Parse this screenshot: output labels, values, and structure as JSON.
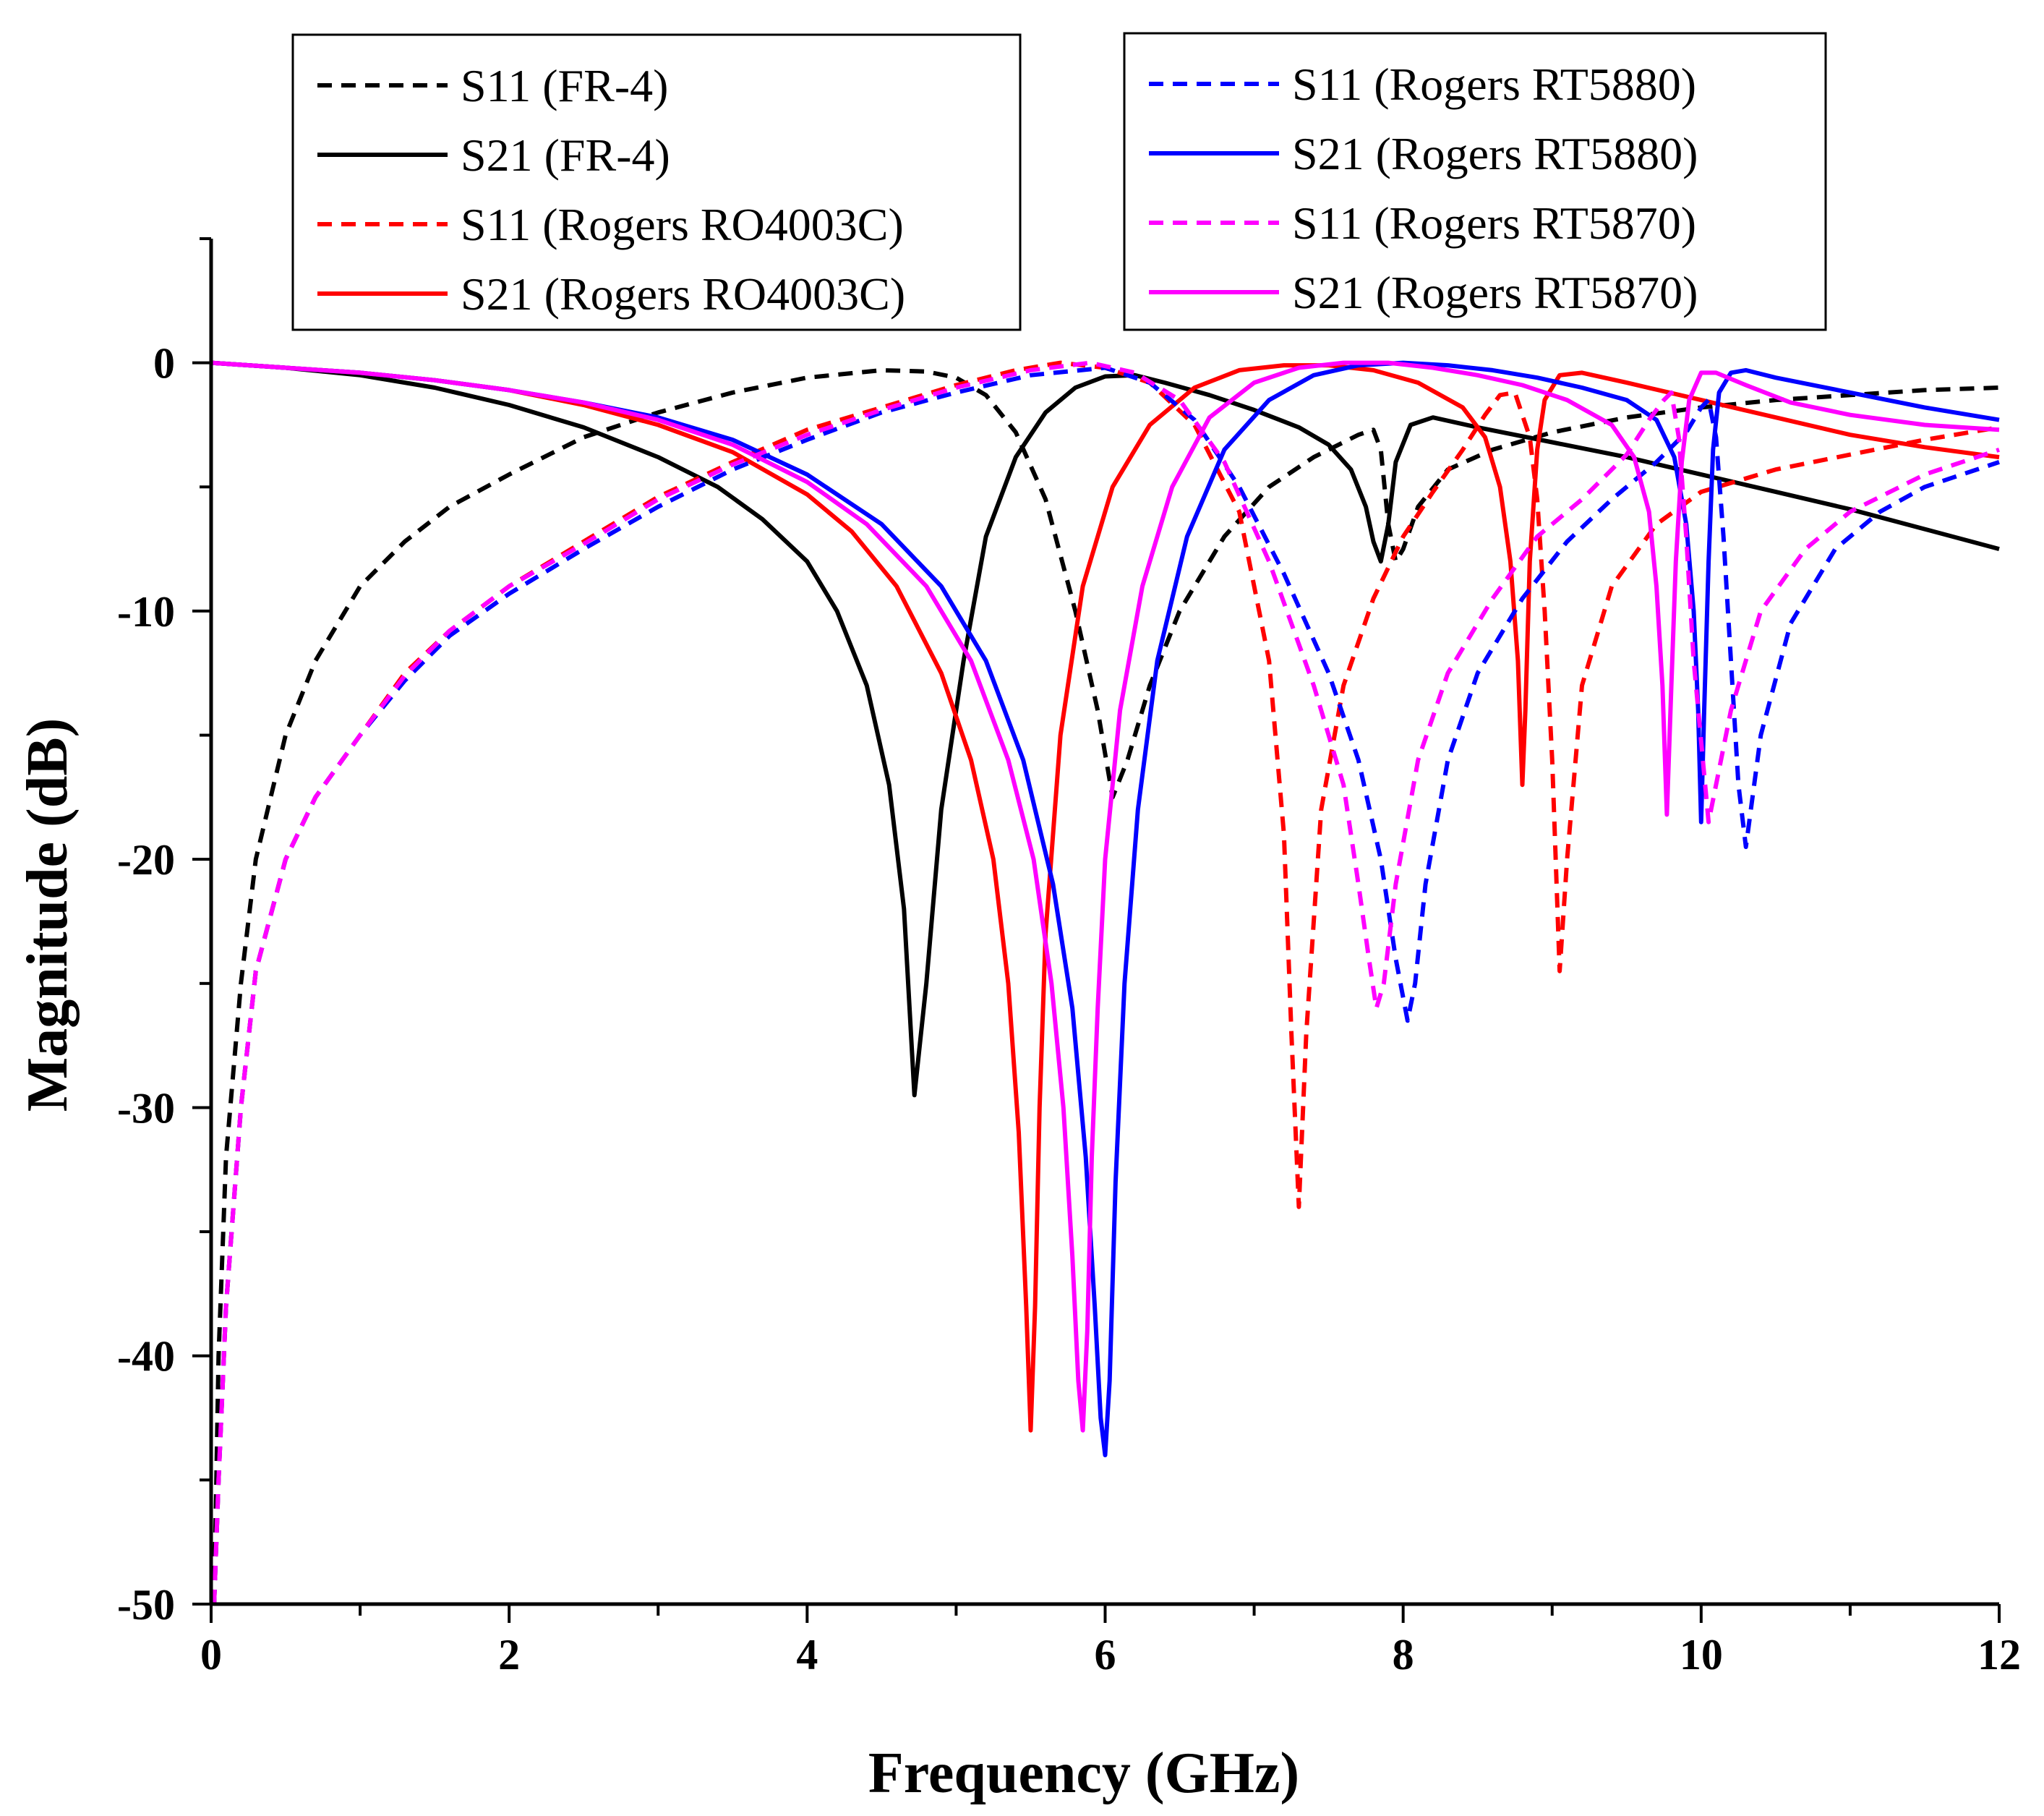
{
  "chart_data": {
    "type": "line",
    "title": "",
    "xlabel": "Frequency (GHz)",
    "ylabel": "Magnitude (dB)",
    "xlim": [
      0,
      12
    ],
    "ylim": [
      -50,
      5
    ],
    "xticks": [
      0,
      2,
      4,
      6,
      8,
      10,
      12
    ],
    "yticks": [
      0,
      -10,
      -20,
      -30,
      -40,
      -50
    ],
    "grid": false,
    "series": [
      {
        "name": "S11 (FR-4)",
        "color": "#000000",
        "dash": "dashed",
        "x": [
          0.02,
          0.05,
          0.1,
          0.2,
          0.3,
          0.5,
          0.7,
          1,
          1.3,
          1.6,
          2,
          2.5,
          3,
          3.5,
          4,
          4.5,
          4.8,
          5.0,
          5.2,
          5.4,
          5.6,
          5.8,
          5.95,
          6.05,
          6.15,
          6.3,
          6.5,
          6.8,
          7.1,
          7.4,
          7.7,
          7.8,
          7.85,
          7.9,
          7.95,
          8.0,
          8.1,
          8.3,
          8.6,
          9,
          9.5,
          10,
          10.5,
          11,
          11.5,
          12
        ],
        "y": [
          -50,
          -40,
          -32,
          -25,
          -20,
          -15,
          -12,
          -9,
          -7.2,
          -5.8,
          -4.5,
          -3.0,
          -2.0,
          -1.2,
          -0.6,
          -0.3,
          -0.35,
          -0.6,
          -1.3,
          -2.8,
          -5.5,
          -10,
          -14,
          -17.5,
          -16,
          -13,
          -10,
          -7,
          -5,
          -3.8,
          -2.9,
          -2.7,
          -3.5,
          -6.5,
          -8.0,
          -7.5,
          -5.8,
          -4.3,
          -3.5,
          -2.8,
          -2.2,
          -1.8,
          -1.5,
          -1.3,
          -1.1,
          -1.0
        ]
      },
      {
        "name": "S21 (FR-4)",
        "color": "#000000",
        "dash": "solid",
        "x": [
          0,
          0.5,
          1,
          1.5,
          2,
          2.5,
          3,
          3.4,
          3.7,
          4.0,
          4.2,
          4.4,
          4.55,
          4.65,
          4.72,
          4.8,
          4.9,
          5.05,
          5.2,
          5.4,
          5.6,
          5.8,
          6.0,
          6.2,
          6.4,
          6.7,
          7.0,
          7.3,
          7.5,
          7.65,
          7.75,
          7.8,
          7.85,
          7.9,
          7.95,
          8.05,
          8.2,
          8.5,
          9,
          9.5,
          10,
          10.5,
          11,
          11.5,
          12
        ],
        "y": [
          0,
          -0.2,
          -0.5,
          -1.0,
          -1.7,
          -2.6,
          -3.8,
          -5.0,
          -6.3,
          -8.0,
          -10,
          -13,
          -17,
          -22,
          -29.5,
          -25,
          -18,
          -12,
          -7,
          -3.8,
          -2,
          -1,
          -0.55,
          -0.5,
          -0.8,
          -1.3,
          -1.9,
          -2.6,
          -3.3,
          -4.3,
          -5.8,
          -7.2,
          -8.0,
          -6.5,
          -4,
          -2.5,
          -2.2,
          -2.6,
          -3.2,
          -3.8,
          -4.5,
          -5.2,
          -5.9,
          -6.7,
          -7.5
        ]
      },
      {
        "name": "S11 (Rogers RO4003C)",
        "color": "#ff0000",
        "dash": "dashed",
        "x": [
          0.02,
          0.05,
          0.1,
          0.2,
          0.3,
          0.5,
          0.7,
          1,
          1.3,
          1.6,
          2,
          2.5,
          3,
          3.5,
          4,
          4.5,
          5,
          5.4,
          5.7,
          6.0,
          6.3,
          6.6,
          6.9,
          7.1,
          7.2,
          7.25,
          7.3,
          7.35,
          7.45,
          7.6,
          7.8,
          8.0,
          8.2,
          8.4,
          8.55,
          8.65,
          8.75,
          8.85,
          8.9,
          8.95,
          9.0,
          9.05,
          9.1,
          9.2,
          9.4,
          9.7,
          10,
          10.5,
          11,
          11.5,
          12
        ],
        "y": [
          -50,
          -45,
          -38,
          -30,
          -24.5,
          -20,
          -17.5,
          -15,
          -12.5,
          -10.8,
          -9,
          -7.2,
          -5.4,
          -4.0,
          -2.7,
          -1.8,
          -0.9,
          -0.3,
          0,
          -0.2,
          -0.8,
          -2.5,
          -6,
          -12,
          -19,
          -27,
          -34,
          -27,
          -18,
          -13,
          -9.5,
          -7,
          -5.2,
          -3.5,
          -2.1,
          -1.3,
          -1.2,
          -3,
          -5.5,
          -10,
          -16,
          -24.5,
          -20,
          -13,
          -9,
          -6.5,
          -5.2,
          -4.3,
          -3.7,
          -3.1,
          -2.6
        ]
      },
      {
        "name": "S21 (Rogers RO4003C)",
        "color": "#ff0000",
        "dash": "solid",
        "x": [
          0,
          0.5,
          1,
          1.5,
          2,
          2.5,
          3,
          3.5,
          4,
          4.3,
          4.6,
          4.9,
          5.1,
          5.25,
          5.35,
          5.42,
          5.47,
          5.5,
          5.53,
          5.56,
          5.6,
          5.7,
          5.85,
          6.05,
          6.3,
          6.6,
          6.9,
          7.2,
          7.5,
          7.8,
          8.1,
          8.4,
          8.55,
          8.65,
          8.72,
          8.77,
          8.8,
          8.82,
          8.85,
          8.9,
          8.95,
          9.05,
          9.2,
          9.5,
          10,
          10.5,
          11,
          11.5,
          12
        ],
        "y": [
          0,
          -0.2,
          -0.4,
          -0.7,
          -1.1,
          -1.7,
          -2.5,
          -3.6,
          -5.3,
          -6.8,
          -9,
          -12.5,
          -16,
          -20,
          -25,
          -31,
          -38,
          -43,
          -38,
          -30,
          -23,
          -15,
          -9,
          -5,
          -2.5,
          -1,
          -0.3,
          -0.1,
          -0.1,
          -0.3,
          -0.8,
          -1.8,
          -3,
          -5,
          -8,
          -12,
          -17,
          -14,
          -8,
          -3.5,
          -1.5,
          -0.5,
          -0.4,
          -0.8,
          -1.5,
          -2.2,
          -2.9,
          -3.4,
          -3.8
        ]
      },
      {
        "name": "S11 (Rogers RT5880)",
        "color": "#0000ff",
        "dash": "dashed",
        "x": [
          0.02,
          0.05,
          0.1,
          0.2,
          0.3,
          0.5,
          0.7,
          1,
          1.3,
          1.6,
          2,
          2.5,
          3,
          3.5,
          4,
          4.5,
          5,
          5.5,
          6.0,
          6.3,
          6.6,
          6.9,
          7.2,
          7.5,
          7.7,
          7.85,
          7.95,
          8.03,
          8.08,
          8.15,
          8.3,
          8.5,
          8.8,
          9.1,
          9.4,
          9.7,
          9.9,
          10.0,
          10.05,
          10.1,
          10.15,
          10.2,
          10.25,
          10.3,
          10.4,
          10.6,
          10.9,
          11.2,
          11.5,
          12
        ],
        "y": [
          -50,
          -45,
          -38,
          -30,
          -24.5,
          -20,
          -17.5,
          -15,
          -12.8,
          -11,
          -9.3,
          -7.5,
          -5.8,
          -4.3,
          -3.1,
          -2,
          -1.2,
          -0.5,
          -0.2,
          -0.8,
          -2.3,
          -5,
          -8.5,
          -12.5,
          -16,
          -20,
          -24,
          -26.5,
          -25,
          -21,
          -16,
          -12.5,
          -9.5,
          -7.2,
          -5.5,
          -4,
          -2.8,
          -1.8,
          -1.5,
          -3,
          -7,
          -12,
          -17,
          -19.5,
          -15,
          -10.5,
          -7.5,
          -6,
          -5,
          -4
        ]
      },
      {
        "name": "S21 (Rogers RT5880)",
        "color": "#0000ff",
        "dash": "solid",
        "x": [
          0,
          0.5,
          1,
          1.5,
          2,
          2.5,
          3,
          3.5,
          4,
          4.5,
          4.9,
          5.2,
          5.45,
          5.65,
          5.78,
          5.87,
          5.93,
          5.97,
          6.0,
          6.03,
          6.07,
          6.13,
          6.22,
          6.35,
          6.55,
          6.8,
          7.1,
          7.4,
          7.7,
          8.0,
          8.3,
          8.6,
          8.9,
          9.2,
          9.5,
          9.7,
          9.82,
          9.9,
          9.95,
          9.98,
          10.0,
          10.02,
          10.05,
          10.08,
          10.12,
          10.2,
          10.3,
          10.5,
          11,
          11.5,
          12
        ],
        "y": [
          0,
          -0.2,
          -0.4,
          -0.7,
          -1.1,
          -1.6,
          -2.2,
          -3.1,
          -4.5,
          -6.5,
          -9,
          -12,
          -16,
          -21,
          -26,
          -32,
          -38,
          -42.5,
          -44,
          -41,
          -33,
          -25,
          -18,
          -12,
          -7,
          -3.5,
          -1.5,
          -0.5,
          -0.1,
          0,
          -0.1,
          -0.3,
          -0.6,
          -1,
          -1.5,
          -2.3,
          -3.8,
          -6.5,
          -10,
          -14,
          -18.5,
          -14,
          -8,
          -3.5,
          -1.2,
          -0.4,
          -0.3,
          -0.6,
          -1.2,
          -1.8,
          -2.3
        ]
      },
      {
        "name": "S11 (Rogers RT5870)",
        "color": "#ff00ff",
        "dash": "dashed",
        "x": [
          0.02,
          0.05,
          0.1,
          0.2,
          0.3,
          0.5,
          0.7,
          1,
          1.3,
          1.6,
          2,
          2.5,
          3,
          3.5,
          4,
          4.5,
          5,
          5.5,
          5.9,
          6.2,
          6.5,
          6.8,
          7.1,
          7.4,
          7.6,
          7.7,
          7.77,
          7.82,
          7.87,
          7.95,
          8.1,
          8.3,
          8.6,
          8.9,
          9.2,
          9.5,
          9.65,
          9.75,
          9.8,
          9.85,
          9.9,
          9.95,
          10.05,
          10.2,
          10.4,
          10.7,
          11,
          11.5,
          12
        ],
        "y": [
          -50,
          -45,
          -38,
          -30,
          -24.5,
          -20,
          -17.5,
          -15,
          -12.6,
          -10.8,
          -9,
          -7.3,
          -5.5,
          -4.1,
          -2.9,
          -1.9,
          -1,
          -0.3,
          0,
          -0.4,
          -1.5,
          -4,
          -8,
          -13,
          -17,
          -21,
          -24,
          -26,
          -25,
          -21,
          -16,
          -12.5,
          -9.5,
          -7,
          -5.5,
          -3.7,
          -2.3,
          -1.5,
          -1.2,
          -3,
          -7,
          -12,
          -18.5,
          -14,
          -10,
          -7.5,
          -6,
          -4.5,
          -3.5
        ]
      },
      {
        "name": "S21 (Rogers RT5870)",
        "color": "#ff00ff",
        "dash": "solid",
        "x": [
          0,
          0.5,
          1,
          1.5,
          2,
          2.5,
          3,
          3.5,
          4,
          4.4,
          4.8,
          5.1,
          5.35,
          5.52,
          5.64,
          5.72,
          5.78,
          5.82,
          5.85,
          5.88,
          5.91,
          5.95,
          6.0,
          6.1,
          6.25,
          6.45,
          6.7,
          7.0,
          7.3,
          7.6,
          7.9,
          8.2,
          8.5,
          8.8,
          9.1,
          9.4,
          9.55,
          9.65,
          9.7,
          9.74,
          9.77,
          9.8,
          9.83,
          9.87,
          9.92,
          10.0,
          10.1,
          10.3,
          10.6,
          11,
          11.5,
          12
        ],
        "y": [
          0,
          -0.2,
          -0.4,
          -0.7,
          -1.1,
          -1.6,
          -2.3,
          -3.3,
          -4.8,
          -6.5,
          -9,
          -12,
          -16,
          -20,
          -25,
          -30,
          -36,
          -41,
          -43,
          -39,
          -32,
          -26,
          -20,
          -14,
          -9,
          -5,
          -2.2,
          -0.8,
          -0.2,
          0,
          0,
          -0.2,
          -0.5,
          -0.9,
          -1.5,
          -2.5,
          -3.8,
          -6,
          -9,
          -13,
          -18.2,
          -13,
          -8,
          -4,
          -1.5,
          -0.4,
          -0.4,
          -0.9,
          -1.6,
          -2.1,
          -2.5,
          -2.7
        ]
      }
    ],
    "legend": {
      "placement": "top",
      "left_group": [
        "S11 (FR-4)",
        "S21 (FR-4)",
        "S11 (Rogers RO4003C)",
        "S21 (Rogers RO4003C)"
      ],
      "right_group": [
        "S11 (Rogers RT5880)",
        "S21 (Rogers RT5880)",
        "S11 (Rogers RT5870)",
        "S21 (Rogers RT5870)"
      ]
    }
  }
}
